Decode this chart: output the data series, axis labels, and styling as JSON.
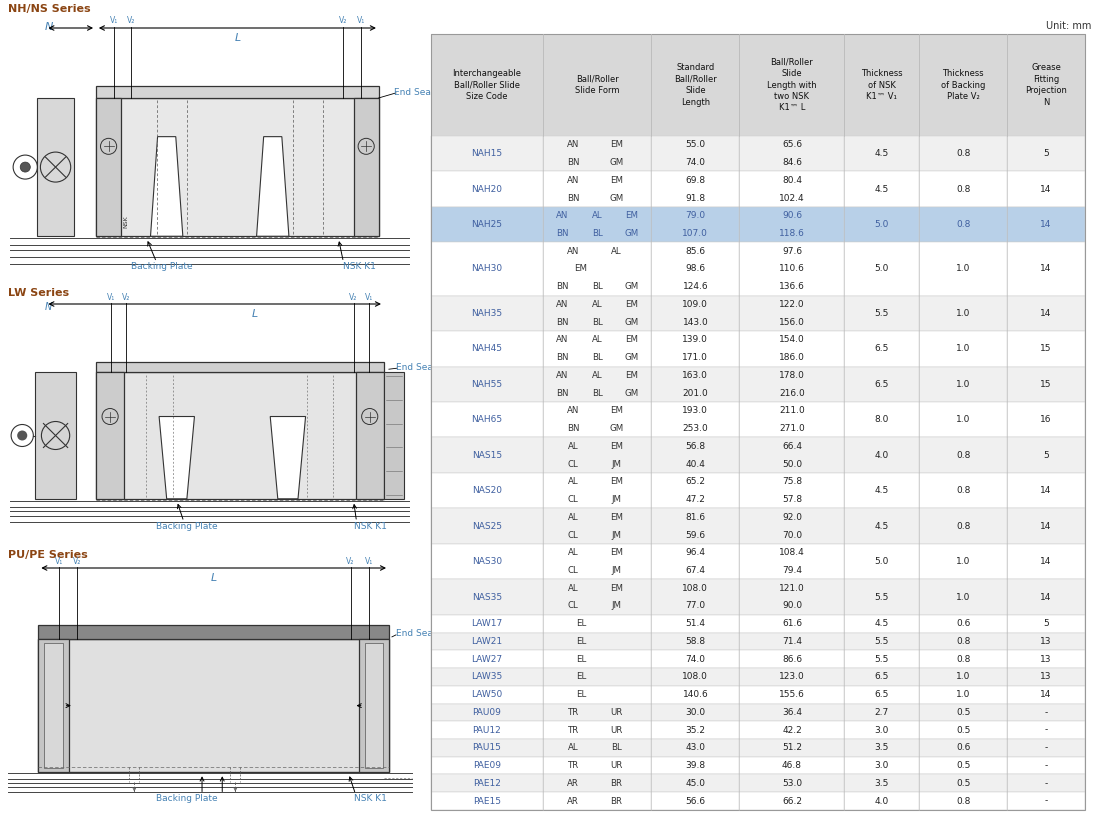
{
  "unit_label": "Unit: mm",
  "background_color": "#ffffff",
  "col_headers": [
    "Interchangeable\nBall/Roller Slide\nSize Code",
    "Ball/Roller\nSlide Form",
    "Standard\nBall/Roller\nSlide\nLength",
    "Ball/Roller\nSlide\nLength with\ntwo NSK\nK1™ L",
    "Thickness\nof NSK\nK1™ V₁",
    "Thickness\nof Backing\nPlate V₂",
    "Grease\nFitting\nProjection\nN"
  ],
  "rows": [
    {
      "code": "NAH15",
      "forms": [
        [
          "AN",
          "EM"
        ],
        [
          "BN",
          "GM"
        ]
      ],
      "lengths": [
        "55.0",
        "74.0"
      ],
      "k1lengths": [
        "65.6",
        "84.6"
      ],
      "v1": "4.5",
      "v2": "0.8",
      "n": "5",
      "highlight": false
    },
    {
      "code": "NAH20",
      "forms": [
        [
          "AN",
          "EM"
        ],
        [
          "BN",
          "GM"
        ]
      ],
      "lengths": [
        "69.8",
        "91.8"
      ],
      "k1lengths": [
        "80.4",
        "102.4"
      ],
      "v1": "4.5",
      "v2": "0.8",
      "n": "14",
      "highlight": false
    },
    {
      "code": "NAH25",
      "forms": [
        [
          "AN",
          "AL",
          "EM"
        ],
        [
          "BN",
          "BL",
          "GM"
        ]
      ],
      "lengths": [
        "79.0",
        "107.0"
      ],
      "k1lengths": [
        "90.6",
        "118.6"
      ],
      "v1": "5.0",
      "v2": "0.8",
      "n": "14",
      "highlight": true
    },
    {
      "code": "NAH30",
      "forms": [
        [
          "AN",
          "AL",
          ""
        ],
        [
          "",
          "EM",
          ""
        ],
        [
          "BN",
          "BL",
          "GM"
        ]
      ],
      "lengths": [
        "85.6",
        "98.6",
        "124.6"
      ],
      "k1lengths": [
        "97.6",
        "110.6",
        "136.6"
      ],
      "v1": "5.0",
      "v2": "1.0",
      "n": "14",
      "highlight": false
    },
    {
      "code": "NAH35",
      "forms": [
        [
          "AN",
          "AL",
          "EM"
        ],
        [
          "BN",
          "BL",
          "GM"
        ]
      ],
      "lengths": [
        "109.0",
        "143.0"
      ],
      "k1lengths": [
        "122.0",
        "156.0"
      ],
      "v1": "5.5",
      "v2": "1.0",
      "n": "14",
      "highlight": false
    },
    {
      "code": "NAH45",
      "forms": [
        [
          "AN",
          "AL",
          "EM"
        ],
        [
          "BN",
          "BL",
          "GM"
        ]
      ],
      "lengths": [
        "139.0",
        "171.0"
      ],
      "k1lengths": [
        "154.0",
        "186.0"
      ],
      "v1": "6.5",
      "v2": "1.0",
      "n": "15",
      "highlight": false
    },
    {
      "code": "NAH55",
      "forms": [
        [
          "AN",
          "AL",
          "EM"
        ],
        [
          "BN",
          "BL",
          "GM"
        ]
      ],
      "lengths": [
        "163.0",
        "201.0"
      ],
      "k1lengths": [
        "178.0",
        "216.0"
      ],
      "v1": "6.5",
      "v2": "1.0",
      "n": "15",
      "highlight": false
    },
    {
      "code": "NAH65",
      "forms": [
        [
          "AN",
          "EM"
        ],
        [
          "BN",
          "GM"
        ]
      ],
      "lengths": [
        "193.0",
        "253.0"
      ],
      "k1lengths": [
        "211.0",
        "271.0"
      ],
      "v1": "8.0",
      "v2": "1.0",
      "n": "16",
      "highlight": false
    },
    {
      "code": "NAS15",
      "forms": [
        [
          "AL",
          "EM"
        ],
        [
          "CL",
          "JM"
        ]
      ],
      "lengths": [
        "56.8",
        "40.4"
      ],
      "k1lengths": [
        "66.4",
        "50.0"
      ],
      "v1": "4.0",
      "v2": "0.8",
      "n": "5",
      "highlight": false
    },
    {
      "code": "NAS20",
      "forms": [
        [
          "AL",
          "EM"
        ],
        [
          "CL",
          "JM"
        ]
      ],
      "lengths": [
        "65.2",
        "47.2"
      ],
      "k1lengths": [
        "75.8",
        "57.8"
      ],
      "v1": "4.5",
      "v2": "0.8",
      "n": "14",
      "highlight": false
    },
    {
      "code": "NAS25",
      "forms": [
        [
          "AL",
          "EM"
        ],
        [
          "CL",
          "JM"
        ]
      ],
      "lengths": [
        "81.6",
        "59.6"
      ],
      "k1lengths": [
        "92.0",
        "70.0"
      ],
      "v1": "4.5",
      "v2": "0.8",
      "n": "14",
      "highlight": false
    },
    {
      "code": "NAS30",
      "forms": [
        [
          "AL",
          "EM"
        ],
        [
          "CL",
          "JM"
        ]
      ],
      "lengths": [
        "96.4",
        "67.4"
      ],
      "k1lengths": [
        "108.4",
        "79.4"
      ],
      "v1": "5.0",
      "v2": "1.0",
      "n": "14",
      "highlight": false
    },
    {
      "code": "NAS35",
      "forms": [
        [
          "AL",
          "EM"
        ],
        [
          "CL",
          "JM"
        ]
      ],
      "lengths": [
        "108.0",
        "77.0"
      ],
      "k1lengths": [
        "121.0",
        "90.0"
      ],
      "v1": "5.5",
      "v2": "1.0",
      "n": "14",
      "highlight": false
    },
    {
      "code": "LAW17",
      "forms": [
        [
          "EL",
          ""
        ]
      ],
      "lengths": [
        "51.4"
      ],
      "k1lengths": [
        "61.6"
      ],
      "v1": "4.5",
      "v2": "0.6",
      "n": "5",
      "highlight": false
    },
    {
      "code": "LAW21",
      "forms": [
        [
          "EL",
          ""
        ]
      ],
      "lengths": [
        "58.8"
      ],
      "k1lengths": [
        "71.4"
      ],
      "v1": "5.5",
      "v2": "0.8",
      "n": "13",
      "highlight": false
    },
    {
      "code": "LAW27",
      "forms": [
        [
          "EL",
          ""
        ]
      ],
      "lengths": [
        "74.0"
      ],
      "k1lengths": [
        "86.6"
      ],
      "v1": "5.5",
      "v2": "0.8",
      "n": "13",
      "highlight": false
    },
    {
      "code": "LAW35",
      "forms": [
        [
          "EL",
          ""
        ]
      ],
      "lengths": [
        "108.0"
      ],
      "k1lengths": [
        "123.0"
      ],
      "v1": "6.5",
      "v2": "1.0",
      "n": "13",
      "highlight": false
    },
    {
      "code": "LAW50",
      "forms": [
        [
          "EL",
          ""
        ]
      ],
      "lengths": [
        "140.6"
      ],
      "k1lengths": [
        "155.6"
      ],
      "v1": "6.5",
      "v2": "1.0",
      "n": "14",
      "highlight": false
    },
    {
      "code": "PAU09",
      "forms": [
        [
          "TR",
          "UR"
        ]
      ],
      "lengths": [
        "30.0"
      ],
      "k1lengths": [
        "36.4"
      ],
      "v1": "2.7",
      "v2": "0.5",
      "n": "-",
      "highlight": false
    },
    {
      "code": "PAU12",
      "forms": [
        [
          "TR",
          "UR"
        ]
      ],
      "lengths": [
        "35.2"
      ],
      "k1lengths": [
        "42.2"
      ],
      "v1": "3.0",
      "v2": "0.5",
      "n": "-",
      "highlight": false
    },
    {
      "code": "PAU15",
      "forms": [
        [
          "AL",
          "BL"
        ]
      ],
      "lengths": [
        "43.0"
      ],
      "k1lengths": [
        "51.2"
      ],
      "v1": "3.5",
      "v2": "0.6",
      "n": "-",
      "highlight": false
    },
    {
      "code": "PAE09",
      "forms": [
        [
          "TR",
          "UR"
        ]
      ],
      "lengths": [
        "39.8"
      ],
      "k1lengths": [
        "46.8"
      ],
      "v1": "3.0",
      "v2": "0.5",
      "n": "-",
      "highlight": false
    },
    {
      "code": "PAE12",
      "forms": [
        [
          "AR",
          "BR"
        ]
      ],
      "lengths": [
        "45.0"
      ],
      "k1lengths": [
        "53.0"
      ],
      "v1": "3.5",
      "v2": "0.5",
      "n": "-",
      "highlight": false
    },
    {
      "code": "PAE15",
      "forms": [
        [
          "AR",
          "BR"
        ]
      ],
      "lengths": [
        "56.6"
      ],
      "k1lengths": [
        "66.2"
      ],
      "v1": "4.0",
      "v2": "0.8",
      "n": "-",
      "highlight": false
    }
  ],
  "series_title_color": "#8B4513",
  "series_dim_color": "#4682B4",
  "label_color": "#4682B4",
  "highlight_bg": "#b8d0e8",
  "row_alt_bg": "#f0f0f0",
  "row_white_bg": "#ffffff",
  "header_bg": "#d8d8d8",
  "text_dark": "#222222",
  "text_blue": "#4060a0"
}
